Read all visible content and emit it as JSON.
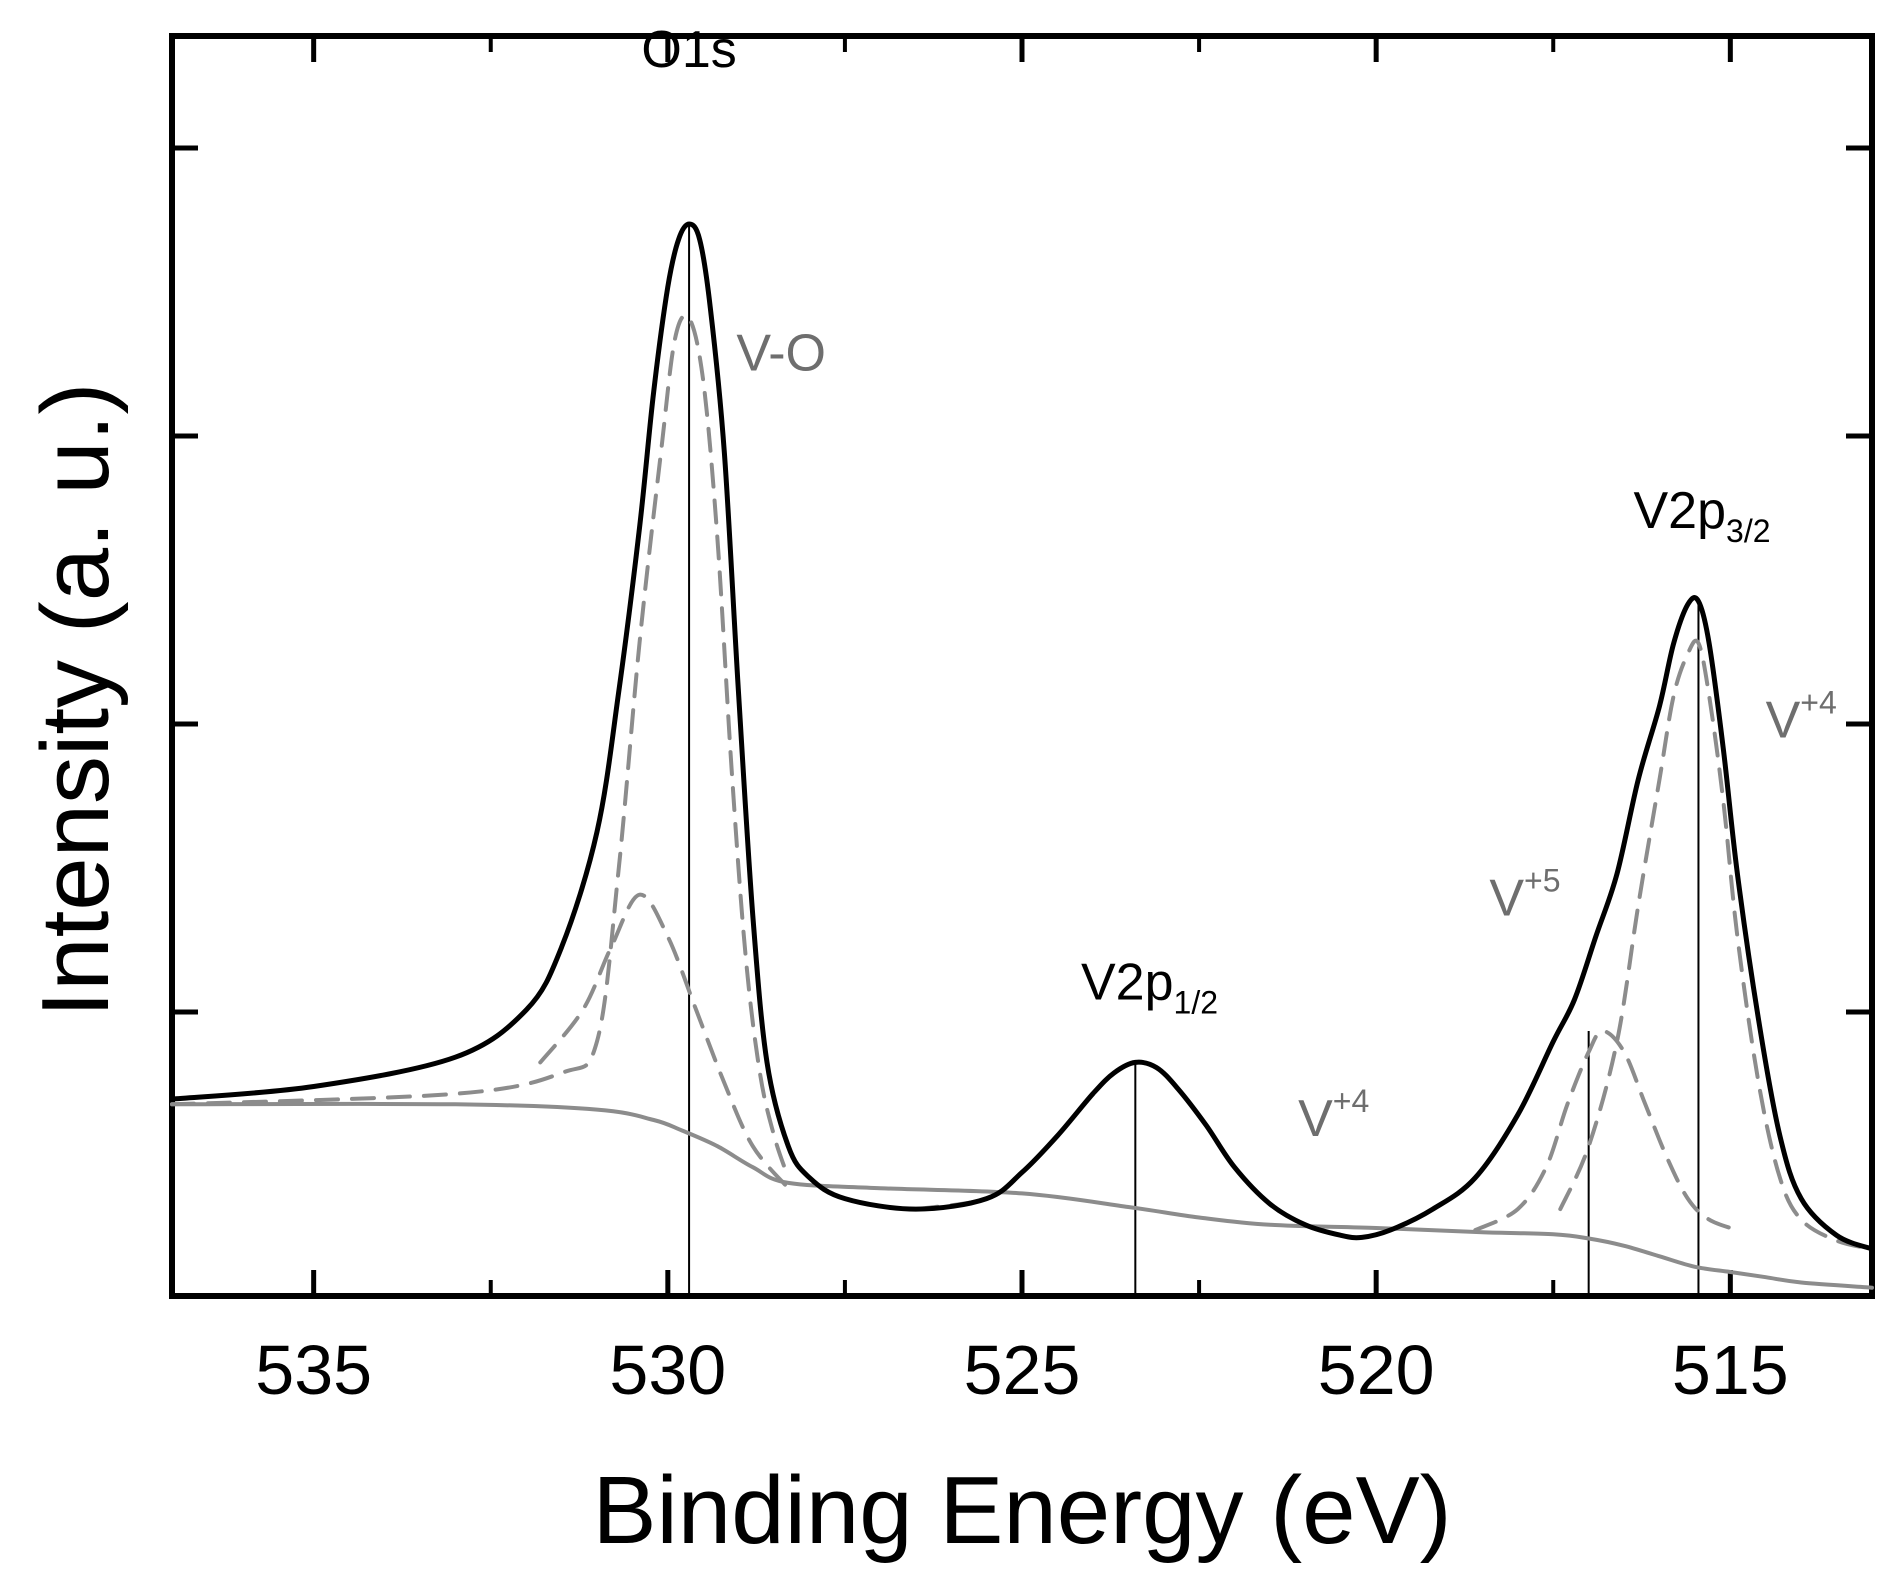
{
  "chart_data": {
    "type": "line",
    "title": "",
    "xlabel": "Binding Energy (eV)",
    "ylabel": "Intensity (a. u.)",
    "xlim": [
      537,
      513
    ],
    "x_reversed": true,
    "ylim": [
      0,
      1
    ],
    "x_ticks": [
      535,
      530,
      525,
      520,
      515
    ],
    "y_ticks_count": 4,
    "grid": false,
    "series": [
      {
        "name": "measured envelope",
        "style": "solid-black",
        "x": [
          537,
          535,
          533,
          532,
          531.5,
          531,
          530.7,
          530.4,
          530.2,
          530.0,
          529.85,
          529.7,
          529.55,
          529.4,
          529.2,
          529.0,
          528.8,
          528.6,
          528.3,
          528.0,
          527.5,
          526.5,
          525.5,
          525.0,
          524.5,
          524.0,
          523.7,
          523.4,
          523.1,
          522.8,
          522.4,
          522.0,
          521.5,
          521.0,
          520.5,
          520.2,
          519.8,
          519.2,
          518.6,
          518.0,
          517.5,
          517.2,
          516.9,
          516.6,
          516.3,
          516.0,
          515.8,
          515.6,
          515.45,
          515.3,
          515.1,
          514.9,
          514.6,
          514.3,
          514.0,
          513.5,
          513.0
        ],
        "y": [
          0.165,
          0.177,
          0.205,
          0.25,
          0.31,
          0.42,
          0.55,
          0.71,
          0.84,
          0.94,
          0.985,
          1.0,
          0.985,
          0.92,
          0.78,
          0.55,
          0.34,
          0.2,
          0.12,
          0.09,
          0.07,
          0.06,
          0.07,
          0.095,
          0.13,
          0.17,
          0.19,
          0.2,
          0.195,
          0.175,
          0.14,
          0.1,
          0.065,
          0.045,
          0.035,
          0.033,
          0.04,
          0.06,
          0.09,
          0.15,
          0.22,
          0.26,
          0.32,
          0.38,
          0.47,
          0.54,
          0.6,
          0.637,
          0.64,
          0.6,
          0.5,
          0.38,
          0.24,
          0.13,
          0.07,
          0.035,
          0.022
        ]
      },
      {
        "name": "V-O component",
        "style": "dashed-gray",
        "x": [
          537,
          533,
          531.5,
          531.0,
          530.7,
          530.4,
          530.1,
          529.9,
          529.7,
          529.5,
          529.3,
          529.1,
          528.9,
          528.7,
          528.5,
          528.3
        ],
        "y": [
          0.16,
          0.17,
          0.19,
          0.22,
          0.38,
          0.6,
          0.78,
          0.89,
          0.91,
          0.85,
          0.7,
          0.48,
          0.3,
          0.19,
          0.13,
          0.09
        ]
      },
      {
        "name": "O1s shoulder component",
        "style": "dashed-gray",
        "x": [
          531.8,
          531.2,
          530.8,
          530.4,
          530.0,
          529.6,
          529.2,
          528.8,
          528.3
        ],
        "y": [
          0.2,
          0.25,
          0.31,
          0.36,
          0.32,
          0.25,
          0.18,
          0.12,
          0.08
        ]
      },
      {
        "name": "V2p1/2 V+4 component",
        "style": "dashed-gray",
        "x": [
          526.5,
          525.5,
          525.0,
          524.5,
          524.0,
          523.7,
          523.4,
          523.1,
          522.8,
          522.4,
          522.0,
          521.5,
          521.0,
          520.5
        ],
        "y": [
          0.06,
          0.07,
          0.095,
          0.13,
          0.17,
          0.19,
          0.2,
          0.195,
          0.175,
          0.14,
          0.1,
          0.065,
          0.045,
          0.035
        ]
      },
      {
        "name": "V2p3/2 V+5 component",
        "style": "dashed-gray",
        "x": [
          518.6,
          518.0,
          517.6,
          517.3,
          517.0,
          516.8,
          516.5,
          516.2,
          515.9,
          515.6,
          515.3,
          514.9
        ],
        "y": [
          0.04,
          0.06,
          0.1,
          0.16,
          0.21,
          0.23,
          0.21,
          0.16,
          0.11,
          0.07,
          0.05,
          0.04
        ]
      },
      {
        "name": "V2p3/2 V+4 component",
        "style": "dashed-gray",
        "x": [
          517.4,
          517.0,
          516.6,
          516.3,
          516.0,
          515.8,
          515.6,
          515.45,
          515.3,
          515.1,
          514.9,
          514.6,
          514.3,
          514.0,
          513.5,
          513.0
        ],
        "y": [
          0.06,
          0.12,
          0.22,
          0.35,
          0.47,
          0.55,
          0.59,
          0.6,
          0.55,
          0.45,
          0.32,
          0.18,
          0.09,
          0.05,
          0.03,
          0.022
        ]
      },
      {
        "name": "Shirley background",
        "style": "solid-gray",
        "x": [
          537,
          533,
          531,
          530.2,
          529.8,
          529.3,
          528.8,
          528.3,
          527,
          525,
          523.5,
          522.5,
          521.5,
          520,
          518.5,
          517.5,
          517.0,
          516.5,
          516.0,
          515.5,
          515.0,
          514.5,
          514.0,
          513.0
        ],
        "y": [
          0.16,
          0.16,
          0.155,
          0.145,
          0.135,
          0.12,
          0.1,
          0.085,
          0.08,
          0.075,
          0.062,
          0.052,
          0.045,
          0.042,
          0.038,
          0.036,
          0.032,
          0.025,
          0.015,
          0.005,
          0.0,
          -0.005,
          -0.01,
          -0.015
        ]
      }
    ],
    "markers": [
      {
        "name": "O1s peak line",
        "x": 529.7,
        "y_top": 1.0
      },
      {
        "name": "V2p1/2 peak line",
        "x": 523.4,
        "y_top": 0.2
      },
      {
        "name": "V+5 line",
        "x": 517.0,
        "y_top": 0.23
      },
      {
        "name": "V2p3/2 peak line",
        "x": 515.45,
        "y_top": 0.64
      }
    ],
    "annotations": [
      {
        "text": "O1s",
        "x": 529.7,
        "y": 1.15,
        "color": "black"
      },
      {
        "text": "V-O",
        "x": 528.4,
        "y": 0.86,
        "color": "gray"
      },
      {
        "text": "V2p",
        "sub": "1/2",
        "x": 523.2,
        "y": 0.26,
        "color": "black"
      },
      {
        "text": "V",
        "sup": "+4",
        "x": 520.6,
        "y": 0.13,
        "color": "gray"
      },
      {
        "text": "V",
        "sup": "+5",
        "x": 517.9,
        "y": 0.34,
        "color": "gray"
      },
      {
        "text": "V2p",
        "sub": "3/2",
        "x": 515.4,
        "y": 0.71,
        "color": "black"
      },
      {
        "text": "V",
        "sup": "+4",
        "x": 514.0,
        "y": 0.51,
        "color": "gray"
      }
    ]
  }
}
